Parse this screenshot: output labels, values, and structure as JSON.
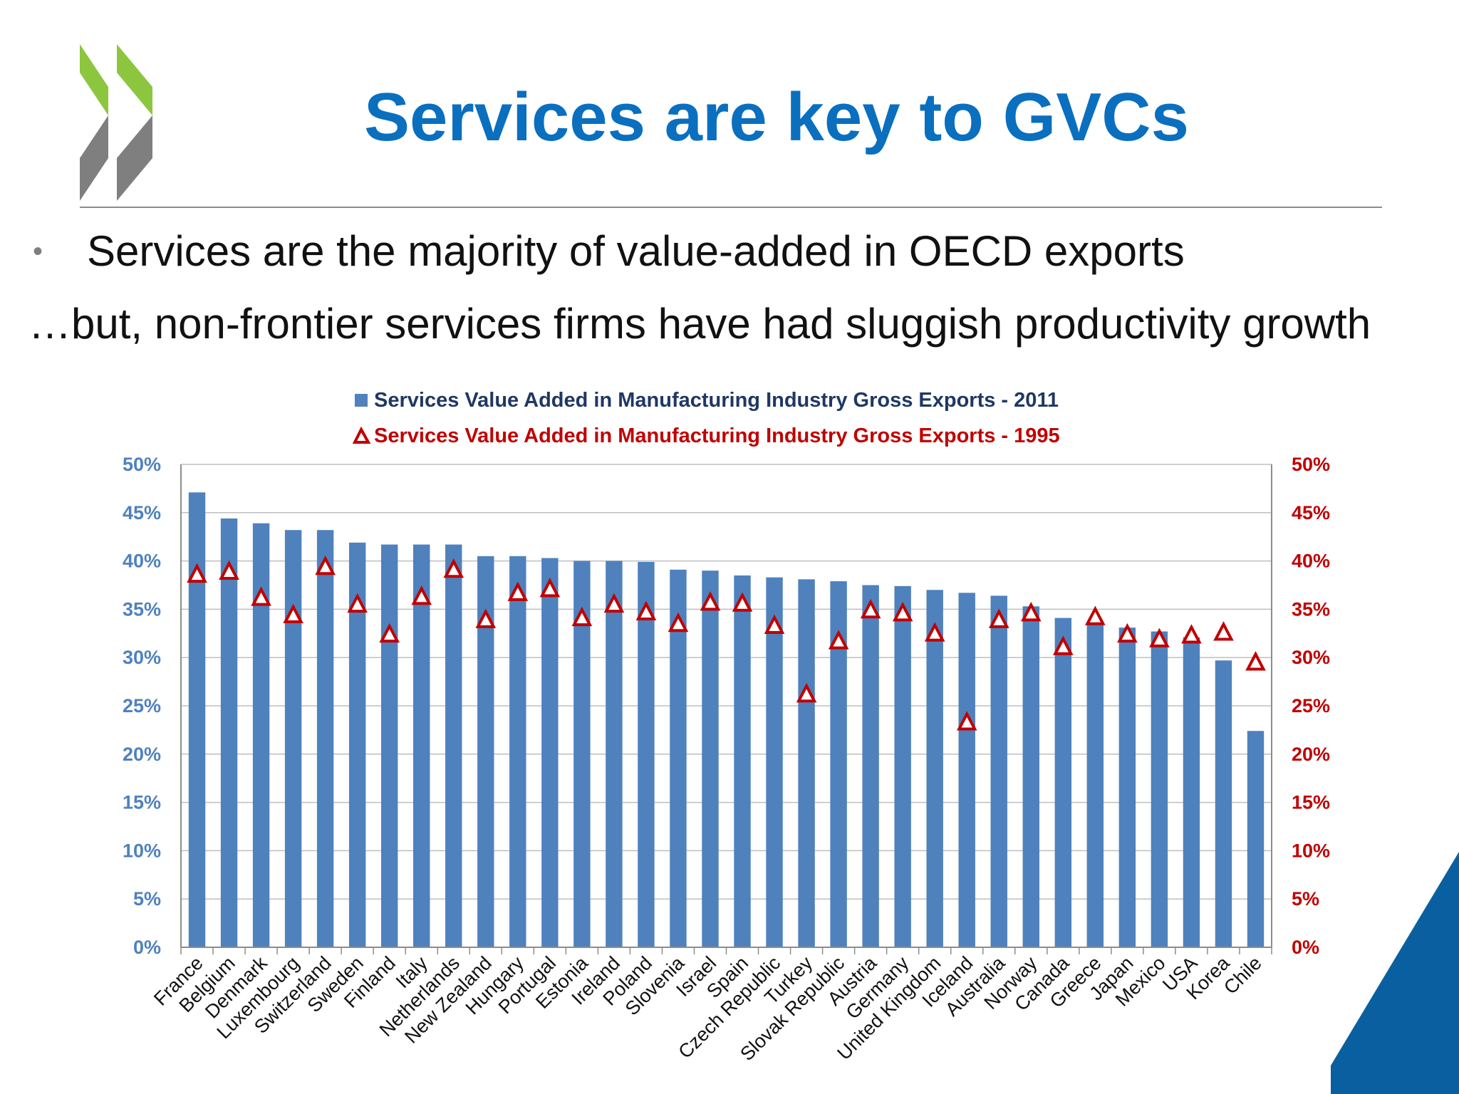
{
  "slide": {
    "title": "Services are key to GVCs",
    "bullet": "Services are the majority of value-added in OECD exports",
    "subline": "…but, non-frontier services firms have had sluggish productivity growth"
  },
  "colors": {
    "title": "#0a6fbf",
    "bar": "#4f81bd",
    "marker": "#c00000",
    "left_axis": "#4f81bd",
    "right_axis": "#c00000",
    "logo_green": "#8cc63f",
    "logo_gray": "#7f7f7f",
    "corner": "#0a5fa0"
  },
  "chart_data": {
    "type": "bar",
    "categories": [
      "France",
      "Belgium",
      "Denmark",
      "Luxembourg",
      "Switzerland",
      "Sweden",
      "Finland",
      "Italy",
      "Netherlands",
      "New Zealand",
      "Hungary",
      "Portugal",
      "Estonia",
      "Ireland",
      "Poland",
      "Slovenia",
      "Israel",
      "Spain",
      "Czech Republic",
      "Turkey",
      "Slovak Republic",
      "Austria",
      "Germany",
      "United Kingdom",
      "Iceland",
      "Australia",
      "Norway",
      "Canada",
      "Greece",
      "Japan",
      "Mexico",
      "USA",
      "Korea",
      "Chile"
    ],
    "series": [
      {
        "name": "Services Value Added in Manufacturing Industry Gross Exports - 2011",
        "mark": "bar",
        "axis": "left",
        "values": [
          47.1,
          44.4,
          43.9,
          43.2,
          43.2,
          41.9,
          41.7,
          41.7,
          41.7,
          40.5,
          40.5,
          40.3,
          40.0,
          40.0,
          39.9,
          39.1,
          39.0,
          38.5,
          38.3,
          38.1,
          37.9,
          37.5,
          37.4,
          37.0,
          36.7,
          36.4,
          35.3,
          34.1,
          33.7,
          33.1,
          32.7,
          32.1,
          29.7,
          22.4
        ]
      },
      {
        "name": "Services Value Added in Manufacturing Industry Gross Exports - 1995",
        "mark": "triangle",
        "axis": "right",
        "values": [
          38.6,
          38.9,
          36.2,
          34.4,
          39.4,
          35.5,
          32.4,
          36.3,
          39.1,
          33.9,
          36.7,
          37.1,
          34.1,
          35.5,
          34.7,
          33.5,
          35.7,
          35.6,
          33.3,
          26.2,
          31.7,
          34.9,
          34.6,
          32.5,
          23.3,
          33.9,
          34.6,
          31.1,
          34.2,
          32.4,
          31.9,
          32.3,
          32.6,
          29.5
        ]
      }
    ],
    "ylim": [
      0,
      50
    ],
    "yticks": [
      "0%",
      "5%",
      "10%",
      "15%",
      "20%",
      "25%",
      "30%",
      "35%",
      "40%",
      "45%",
      "50%"
    ],
    "y2lim": [
      0,
      50
    ],
    "y2ticks": [
      "0%",
      "5%",
      "10%",
      "15%",
      "20%",
      "25%",
      "30%",
      "35%",
      "40%",
      "45%",
      "50%"
    ],
    "grid": true,
    "legend_position": "top-center"
  }
}
